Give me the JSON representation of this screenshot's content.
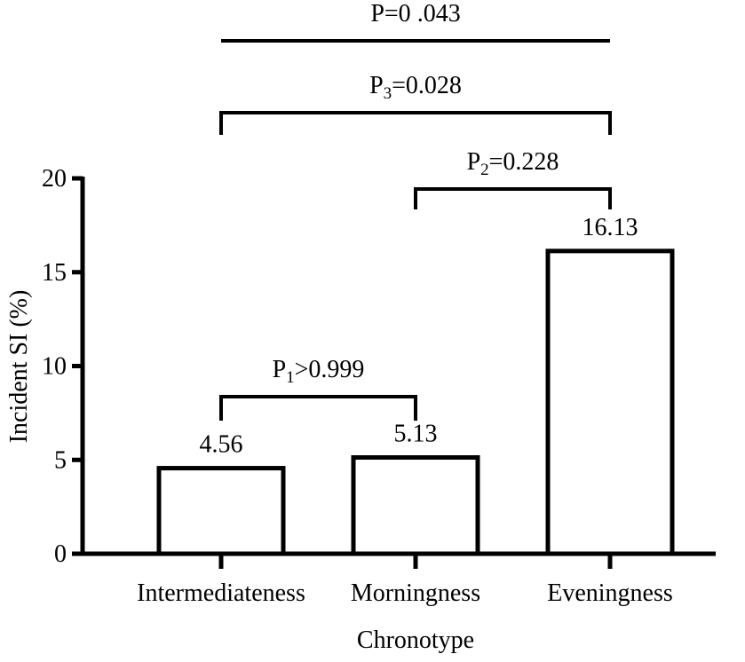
{
  "chart_data": {
    "type": "bar",
    "categories": [
      "Intermediateness",
      "Morningness",
      "Eveningness"
    ],
    "values": [
      4.56,
      5.13,
      16.13
    ],
    "value_labels": [
      "4.56",
      "5.13",
      "16.13"
    ],
    "xlabel": "Chronotype",
    "ylabel": "Incident SI (%)",
    "ylim": [
      0,
      20
    ],
    "yticks": [
      0,
      5,
      10,
      15,
      20
    ],
    "grid": false,
    "bar_fill": "#ffffff",
    "bar_stroke": "#000000",
    "comparisons": [
      {
        "label_main": "P",
        "label_sub": "1",
        "label_rest": ">0.999",
        "from": 0,
        "to": 1,
        "style": "bracket"
      },
      {
        "label_main": "P",
        "label_sub": "2",
        "label_rest": "=0.228",
        "from": 1,
        "to": 2,
        "style": "bracket"
      },
      {
        "label_main": "P",
        "label_sub": "3",
        "label_rest": "=0.028",
        "from": 0,
        "to": 2,
        "style": "bracket"
      },
      {
        "label_main": "P=0",
        "label_sub": "",
        "label_rest": " .043",
        "from": 0,
        "to": 2,
        "style": "line"
      }
    ]
  }
}
